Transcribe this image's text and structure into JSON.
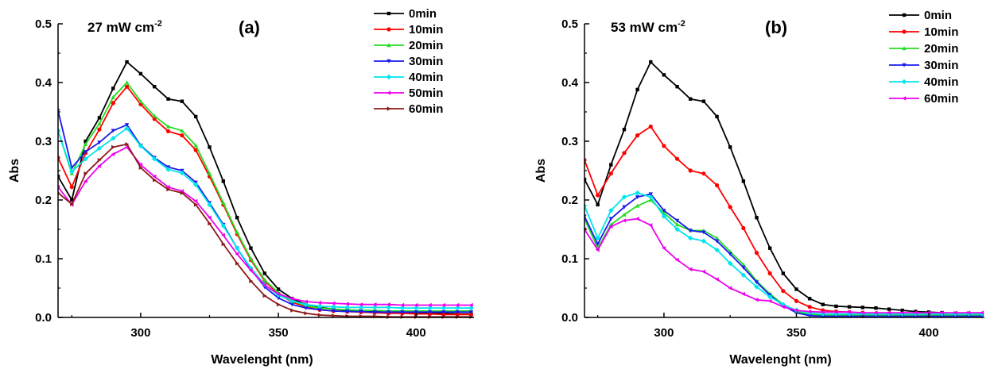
{
  "chart_data": [
    {
      "type": "line",
      "panel_label": "(a)",
      "annotation_main": "27 mW cm",
      "annotation_sup": "-2",
      "xlabel": "Wavelenght (nm)",
      "ylabel": "Abs",
      "xlim": [
        270,
        421
      ],
      "ylim": [
        0.0,
        0.5
      ],
      "xticks": [
        "300",
        "350",
        "400"
      ],
      "yticks": [
        "0.0",
        "0.1",
        "0.2",
        "0.3",
        "0.4",
        "0.5"
      ],
      "legend_position": "top-right",
      "x": [
        265,
        270,
        275,
        280,
        285,
        290,
        295,
        300,
        305,
        310,
        315,
        320,
        325,
        330,
        335,
        340,
        345,
        350,
        355,
        360,
        365,
        370,
        375,
        380,
        385,
        390,
        395,
        400,
        405,
        410,
        415,
        420
      ],
      "series": [
        {
          "name": "0min",
          "color": "#000000",
          "marker": "square",
          "values": [
            0.265,
            0.24,
            0.2,
            0.3,
            0.34,
            0.39,
            0.435,
            0.415,
            0.393,
            0.372,
            0.368,
            0.342,
            0.29,
            0.232,
            0.17,
            0.118,
            0.075,
            0.048,
            0.032,
            0.022,
            0.017,
            0.014,
            0.012,
            0.011,
            0.01,
            0.009,
            0.008,
            0.008,
            0.007,
            0.007,
            0.006,
            0.006
          ]
        },
        {
          "name": "10min",
          "color": "#ff0000",
          "marker": "circle",
          "values": [
            0.3,
            0.272,
            0.222,
            0.28,
            0.32,
            0.365,
            0.393,
            0.363,
            0.338,
            0.317,
            0.31,
            0.285,
            0.24,
            0.192,
            0.142,
            0.098,
            0.062,
            0.04,
            0.026,
            0.018,
            0.013,
            0.011,
            0.01,
            0.009,
            0.008,
            0.007,
            0.007,
            0.006,
            0.006,
            0.005,
            0.005,
            0.005
          ]
        },
        {
          "name": "20min",
          "color": "#22dd22",
          "marker": "triangle-up",
          "values": [
            0.345,
            0.318,
            0.245,
            0.295,
            0.33,
            0.375,
            0.4,
            0.368,
            0.343,
            0.325,
            0.318,
            0.293,
            0.245,
            0.195,
            0.145,
            0.1,
            0.064,
            0.042,
            0.028,
            0.02,
            0.016,
            0.014,
            0.013,
            0.012,
            0.012,
            0.011,
            0.011,
            0.011,
            0.011,
            0.011,
            0.011,
            0.011
          ]
        },
        {
          "name": "30min",
          "color": "#1a1aee",
          "marker": "triangle-down",
          "values": [
            0.37,
            0.352,
            0.255,
            0.282,
            0.298,
            0.318,
            0.328,
            0.293,
            0.272,
            0.256,
            0.25,
            0.23,
            0.195,
            0.158,
            0.118,
            0.082,
            0.052,
            0.033,
            0.022,
            0.016,
            0.013,
            0.011,
            0.01,
            0.01,
            0.009,
            0.009,
            0.009,
            0.009,
            0.009,
            0.009,
            0.009,
            0.009
          ]
        },
        {
          "name": "40min",
          "color": "#00e5ee",
          "marker": "diamond",
          "values": [
            0.34,
            0.318,
            0.248,
            0.27,
            0.288,
            0.305,
            0.322,
            0.292,
            0.27,
            0.252,
            0.246,
            0.226,
            0.192,
            0.156,
            0.118,
            0.084,
            0.056,
            0.038,
            0.028,
            0.022,
            0.019,
            0.018,
            0.017,
            0.017,
            0.017,
            0.017,
            0.016,
            0.016,
            0.016,
            0.016,
            0.016,
            0.016
          ]
        },
        {
          "name": "50min",
          "color": "#ee00ee",
          "marker": "triangle-left",
          "values": [
            0.225,
            0.222,
            0.192,
            0.232,
            0.258,
            0.278,
            0.29,
            0.26,
            0.24,
            0.222,
            0.215,
            0.198,
            0.17,
            0.14,
            0.108,
            0.08,
            0.055,
            0.04,
            0.032,
            0.027,
            0.025,
            0.024,
            0.023,
            0.022,
            0.022,
            0.022,
            0.021,
            0.021,
            0.021,
            0.021,
            0.021,
            0.021
          ]
        },
        {
          "name": "60min",
          "color": "#8b1a1a",
          "marker": "triangle-right",
          "values": [
            0.215,
            0.212,
            0.193,
            0.245,
            0.268,
            0.29,
            0.295,
            0.255,
            0.234,
            0.218,
            0.212,
            0.192,
            0.16,
            0.125,
            0.092,
            0.062,
            0.037,
            0.022,
            0.012,
            0.007,
            0.004,
            0.003,
            0.002,
            0.002,
            0.002,
            0.001,
            0.001,
            0.001,
            0.001,
            0.001,
            0.001,
            0.001
          ]
        }
      ]
    },
    {
      "type": "line",
      "panel_label": "(b)",
      "annotation_main": "53 mW cm",
      "annotation_sup": "-2",
      "xlabel": "Wavelenght (nm)",
      "ylabel": "Abs",
      "xlim": [
        270,
        421
      ],
      "ylim": [
        0.0,
        0.5
      ],
      "xticks": [
        "300",
        "350",
        "400"
      ],
      "yticks": [
        "0.0",
        "0.1",
        "0.2",
        "0.3",
        "0.4",
        "0.5"
      ],
      "legend_position": "top-right",
      "x": [
        265,
        270,
        275,
        280,
        285,
        290,
        295,
        300,
        305,
        310,
        315,
        320,
        325,
        330,
        335,
        340,
        345,
        350,
        355,
        360,
        365,
        370,
        375,
        380,
        385,
        390,
        395,
        400,
        405,
        410,
        415,
        420
      ],
      "series": [
        {
          "name": "0min",
          "color": "#000000",
          "marker": "square",
          "values": [
            0.255,
            0.235,
            0.192,
            0.26,
            0.32,
            0.388,
            0.435,
            0.413,
            0.393,
            0.372,
            0.368,
            0.342,
            0.29,
            0.232,
            0.17,
            0.118,
            0.075,
            0.048,
            0.032,
            0.022,
            0.019,
            0.018,
            0.017,
            0.016,
            0.014,
            0.012,
            0.01,
            0.009,
            0.008,
            0.007,
            0.007,
            0.006
          ]
        },
        {
          "name": "10min",
          "color": "#ff0000",
          "marker": "circle",
          "values": [
            0.285,
            0.268,
            0.208,
            0.245,
            0.28,
            0.31,
            0.325,
            0.292,
            0.27,
            0.25,
            0.245,
            0.225,
            0.188,
            0.152,
            0.11,
            0.075,
            0.045,
            0.028,
            0.018,
            0.012,
            0.01,
            0.009,
            0.008,
            0.007,
            0.007,
            0.006,
            0.006,
            0.006,
            0.005,
            0.005,
            0.005,
            0.005
          ]
        },
        {
          "name": "20min",
          "color": "#22dd22",
          "marker": "triangle-up",
          "values": [
            0.185,
            0.168,
            0.118,
            0.158,
            0.175,
            0.19,
            0.2,
            0.178,
            0.158,
            0.148,
            0.148,
            0.135,
            0.112,
            0.09,
            0.062,
            0.04,
            0.022,
            0.01,
            0.005,
            0.004,
            0.004,
            0.004,
            0.004,
            0.004,
            0.004,
            0.004,
            0.004,
            0.004,
            0.004,
            0.004,
            0.004,
            0.004
          ]
        },
        {
          "name": "30min",
          "color": "#1a1aee",
          "marker": "triangle-down",
          "values": [
            0.19,
            0.172,
            0.125,
            0.168,
            0.188,
            0.205,
            0.21,
            0.182,
            0.165,
            0.148,
            0.145,
            0.13,
            0.108,
            0.085,
            0.06,
            0.038,
            0.02,
            0.008,
            0.003,
            0.002,
            0.002,
            0.002,
            0.002,
            0.002,
            0.002,
            0.002,
            0.002,
            0.002,
            0.002,
            0.002,
            0.002,
            0.002
          ]
        },
        {
          "name": "40min",
          "color": "#00e5ee",
          "marker": "diamond",
          "values": [
            0.205,
            0.19,
            0.135,
            0.182,
            0.205,
            0.212,
            0.205,
            0.172,
            0.15,
            0.135,
            0.13,
            0.115,
            0.092,
            0.072,
            0.052,
            0.035,
            0.022,
            0.012,
            0.008,
            0.006,
            0.006,
            0.006,
            0.006,
            0.006,
            0.006,
            0.006,
            0.006,
            0.006,
            0.006,
            0.006,
            0.006,
            0.006
          ]
        },
        {
          "name": "60min",
          "color": "#ee00ee",
          "marker": "triangle-left",
          "values": [
            0.16,
            0.15,
            0.115,
            0.155,
            0.165,
            0.168,
            0.157,
            0.118,
            0.098,
            0.082,
            0.078,
            0.065,
            0.05,
            0.04,
            0.03,
            0.028,
            0.018,
            0.012,
            0.01,
            0.009,
            0.009,
            0.009,
            0.008,
            0.008,
            0.008,
            0.008,
            0.008,
            0.008,
            0.008,
            0.008,
            0.008,
            0.008
          ]
        }
      ]
    }
  ]
}
